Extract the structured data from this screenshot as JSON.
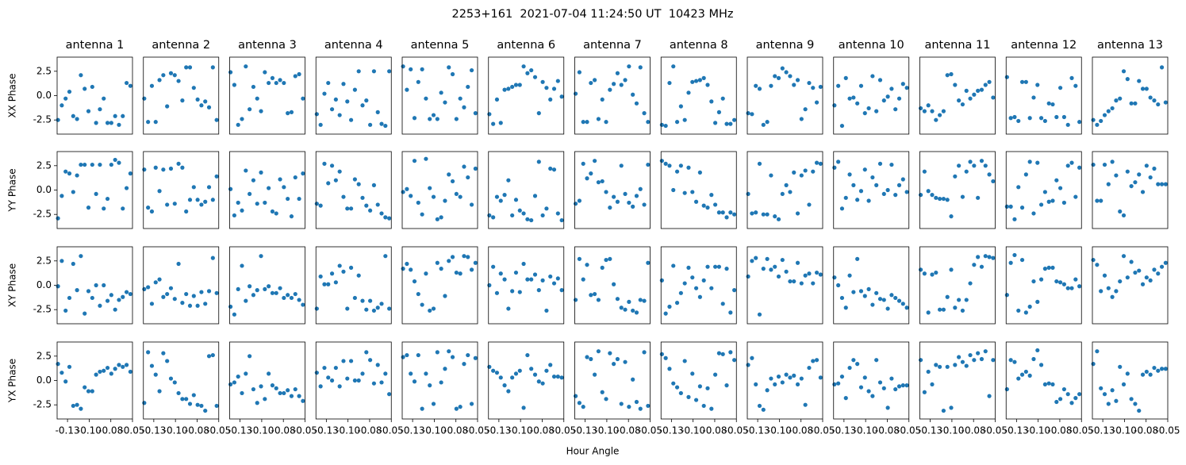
{
  "chart_data": {
    "type": "scatter",
    "title": "2253+161  2021-07-04 11:24:50 UT  10423 MHz",
    "xlabel": "Hour Angle",
    "color": "#1f77b4",
    "column_titles": [
      "antenna 1",
      "antenna 2",
      "antenna 3",
      "antenna 4",
      "antenna 5",
      "antenna 6",
      "antenna 7",
      "antenna 8",
      "antenna 9",
      "antenna 10",
      "antenna 11",
      "antenna 12",
      "antenna 13"
    ],
    "row_labels": [
      "XX Phase",
      "YY Phase",
      "XY Phase",
      "YX Phase"
    ],
    "xlim": [
      -0.137,
      -0.05
    ],
    "xticks": [
      {
        "value": -0.125,
        "label": "-0.13"
      },
      {
        "value": -0.1,
        "label": "-0.10"
      },
      {
        "value": -0.075,
        "label": "-0.08"
      },
      -0.05
    ],
    "ylim": [
      -3.95,
      3.95
    ],
    "yticks": [
      -2.5,
      {
        "value": 0,
        "label": "0.0"
      },
      2.5
    ],
    "x": [
      -0.136,
      -0.1316,
      -0.1272,
      -0.1228,
      -0.1184,
      -0.114,
      -0.1096,
      -0.1052,
      -0.1008,
      -0.0964,
      -0.092,
      -0.0876,
      -0.0832,
      -0.0788,
      -0.0744,
      -0.07,
      -0.0656,
      -0.0612,
      -0.0568,
      -0.0524
    ],
    "panels": [
      [
        [
          -2.5,
          -1.0,
          -0.3,
          0.4,
          -2.1,
          -2.4,
          2.1,
          0.7,
          -1.6,
          0.9,
          -2.8,
          -1.4,
          -0.3,
          -2.8,
          -2.8,
          -2.1,
          -3.0,
          -2.1,
          1.3,
          1.0
        ],
        [
          -0.3,
          -2.7,
          1.0,
          -2.7,
          1.6,
          2.1,
          -1.1,
          2.3,
          2.1,
          1.5,
          -0.5,
          2.9,
          2.9,
          0.8,
          -0.4,
          -1.0,
          -0.6,
          -1.2,
          2.9,
          -2.5
        ],
        [
          2.4,
          1.1,
          -3.0,
          -2.4,
          3.0,
          -1.4,
          0.9,
          -0.3,
          -1.6,
          2.4,
          1.3,
          1.8,
          1.3,
          1.6,
          1.3,
          -1.8,
          -1.7,
          2.0,
          2.2,
          -0.3
        ],
        [
          -1.9,
          -3.0,
          0.2,
          1.3,
          -1.4,
          -0.4,
          -2.0,
          1.2,
          -0.6,
          -2.5,
          0.6,
          2.5,
          -1.0,
          -0.5,
          -3.0,
          2.5,
          -1.7,
          -2.9,
          -3.1,
          2.5
        ],
        [
          3.0,
          0.6,
          2.7,
          -2.3,
          1.4,
          2.7,
          -0.3,
          -2.4,
          -2.0,
          -2.4,
          0.3,
          -0.7,
          2.9,
          2.2,
          -2.4,
          -0.3,
          -1.2,
          0.9,
          2.6,
          -1.8
        ],
        [
          -1.9,
          -2.9,
          -0.4,
          -2.8,
          0.6,
          0.7,
          0.9,
          1.1,
          1.1,
          3.0,
          2.3,
          2.6,
          1.9,
          -1.8,
          1.4,
          0.8,
          -0.4,
          0.7,
          1.5,
          -0.1
        ],
        [
          0.2,
          2.4,
          -2.7,
          -2.7,
          1.3,
          1.6,
          -2.4,
          -0.4,
          -2.7,
          0.6,
          1.2,
          2.3,
          1.1,
          1.6,
          3.0,
          0.1,
          -0.8,
          2.9,
          -1.8,
          -2.7
        ],
        [
          -3.0,
          -3.1,
          1.3,
          3.0,
          -2.7,
          -1.1,
          -2.5,
          0.3,
          1.4,
          1.5,
          1.6,
          1.8,
          1.1,
          -0.6,
          -2.8,
          -1.7,
          -0.3,
          -2.9,
          -2.9,
          -2.5
        ],
        [
          -1.8,
          -1.9,
          1.0,
          0.7,
          -3.0,
          -2.7,
          1.0,
          2.0,
          1.8,
          2.8,
          2.4,
          2.0,
          1.1,
          1.6,
          -2.4,
          -1.4,
          1.3,
          0.8,
          -0.7,
          0.9
        ],
        [
          -1.0,
          1.0,
          -3.1,
          1.8,
          -0.3,
          -0.2,
          -0.8,
          1.0,
          -1.8,
          -1.3,
          2.0,
          -1.6,
          1.6,
          -0.5,
          -0.1,
          0.7,
          -1.4,
          -0.3,
          1.2,
          0.8
        ],
        [
          -1.3,
          -1.6,
          -1.0,
          -1.6,
          -2.5,
          -2.0,
          -1.6,
          2.1,
          2.2,
          1.1,
          -0.5,
          -0.9,
          0.5,
          -0.3,
          0.1,
          0.5,
          0.6,
          1.1,
          1.4,
          -0.2
        ],
        [
          1.9,
          -2.3,
          -2.2,
          -2.6,
          1.4,
          1.4,
          -2.3,
          -0.2,
          1.1,
          -2.3,
          -2.6,
          -0.8,
          -0.9,
          -2.2,
          0.8,
          -2.2,
          -3.0,
          1.8,
          1.0,
          -2.7
        ],
        [
          -2.5,
          -3.0,
          -2.6,
          -2.0,
          -1.6,
          -1.3,
          -0.5,
          -0.3,
          2.5,
          1.7,
          -0.8,
          -0.8,
          1.5,
          0.7,
          0.7,
          -0.2,
          -0.5,
          -0.9,
          2.9,
          -0.7
        ]
      ],
      [
        [
          -2.9,
          -0.6,
          1.9,
          1.7,
          -0.2,
          1.5,
          2.6,
          2.6,
          -1.8,
          2.6,
          -0.4,
          2.6,
          -1.9,
          -0.9,
          2.6,
          3.1,
          2.8,
          -1.9,
          0.2,
          1.7
        ],
        [
          2.1,
          -1.8,
          -2.2,
          2.3,
          -0.1,
          2.1,
          -1.5,
          2.2,
          -1.4,
          2.7,
          2.3,
          -2.2,
          -1.0,
          0.3,
          -1.0,
          -1.5,
          -1.2,
          0.3,
          -1.0,
          1.4
        ],
        [
          0.1,
          -2.6,
          -1.3,
          -2.1,
          2.0,
          -0.4,
          1.0,
          -1.4,
          1.8,
          -1.3,
          0.2,
          -2.2,
          -2.4,
          1.1,
          0.3,
          -0.9,
          -2.7,
          1.3,
          -0.9,
          1.7
        ],
        [
          -1.4,
          -1.6,
          2.7,
          0.7,
          2.5,
          1.0,
          1.9,
          -0.7,
          -1.9,
          -1.9,
          1.1,
          0.6,
          -0.8,
          -1.6,
          -2.1,
          0.5,
          -1.5,
          -2.4,
          -2.8,
          -2.9
        ],
        [
          -0.2,
          0.1,
          -0.6,
          3.0,
          -1.3,
          -2.5,
          3.2,
          0.2,
          -0.7,
          -3.0,
          -2.8,
          -1.1,
          1.6,
          0.9,
          -0.4,
          -0.7,
          2.4,
          1.3,
          -1.5,
          2.2
        ],
        [
          -2.6,
          -2.8,
          -0.7,
          -1.1,
          -0.5,
          1.0,
          -2.6,
          -1.0,
          -2.1,
          -2.4,
          -3.0,
          -3.1,
          -0.6,
          2.9,
          -2.6,
          -1.9,
          2.2,
          2.1,
          -2.4,
          -3.1
        ],
        [
          -1.4,
          -1.1,
          2.7,
          1.2,
          1.7,
          3.0,
          0.8,
          0.9,
          -0.2,
          -1.8,
          -0.7,
          -1.2,
          2.5,
          -0.4,
          -1.3,
          -1.7,
          -0.6,
          0.1,
          -1.5,
          2.6
        ],
        [
          3.0,
          2.7,
          2.5,
          0.0,
          1.9,
          2.5,
          -0.3,
          2.3,
          -0.2,
          -1.2,
          1.8,
          -1.6,
          -1.8,
          -0.5,
          -1.5,
          -2.3,
          -2.3,
          -2.8,
          -2.3,
          -2.5
        ],
        [
          -0.4,
          -2.4,
          -2.3,
          2.7,
          -2.5,
          -2.5,
          1.5,
          -2.7,
          -3.0,
          -0.4,
          0.5,
          -0.2,
          1.8,
          -2.4,
          1.5,
          2.0,
          -1.5,
          1.9,
          2.8,
          2.7
        ],
        [
          2.3,
          2.9,
          -1.9,
          -0.8,
          1.6,
          0.5,
          -1.0,
          -0.1,
          2.1,
          -1.1,
          1.3,
          0.5,
          2.7,
          -0.4,
          0.0,
          2.6,
          -0.5,
          0.5,
          1.1,
          -0.2
        ],
        [
          -0.5,
          1.9,
          -0.1,
          -0.5,
          -0.8,
          -0.9,
          -0.9,
          -1.0,
          -2.7,
          1.4,
          2.5,
          -0.7,
          1.9,
          2.9,
          2.5,
          -0.8,
          3.0,
          2.5,
          1.6,
          0.9
        ],
        [
          -1.7,
          -1.7,
          -3.0,
          0.3,
          -1.8,
          1.6,
          2.9,
          -2.4,
          2.8,
          -1.5,
          -0.2,
          -1.2,
          -1.1,
          1.0,
          0.2,
          -1.3,
          2.5,
          2.8,
          -0.7,
          2.3
        ],
        [
          2.6,
          -1.1,
          -1.1,
          2.6,
          0.6,
          2.9,
          1.5,
          -2.2,
          -2.6,
          1.9,
          0.4,
          0.8,
          1.6,
          -0.2,
          2.5,
          1.3,
          2.2,
          0.6,
          0.6,
          0.6
        ]
      ],
      [
        [
          -0.1,
          2.5,
          -2.6,
          -1.3,
          2.2,
          -0.5,
          3.0,
          -2.9,
          -0.6,
          -1.3,
          0.0,
          -2.1,
          0.0,
          -1.6,
          -1.0,
          -2.5,
          -1.5,
          -1.2,
          -0.7,
          -0.9
        ],
        [
          -0.4,
          -0.2,
          -1.9,
          0.3,
          0.6,
          -1.2,
          -0.9,
          -0.3,
          -1.4,
          2.2,
          -1.8,
          -0.9,
          -2.1,
          -1.1,
          -2.1,
          -0.7,
          -1.9,
          -0.6,
          2.8,
          -0.8
        ],
        [
          -2.2,
          -3.0,
          -0.4,
          2.0,
          -1.6,
          -0.1,
          -1.0,
          -0.5,
          3.0,
          -0.4,
          -0.1,
          -0.8,
          -0.8,
          -0.3,
          -1.3,
          -1.0,
          -1.3,
          -0.9,
          -1.5,
          -2.0
        ],
        [
          -2.4,
          0.9,
          0.1,
          0.1,
          1.2,
          0.3,
          2.0,
          1.4,
          -2.4,
          1.8,
          -1.3,
          1.0,
          -1.6,
          -2.5,
          -1.6,
          -2.6,
          -2.3,
          -1.9,
          3.0,
          -2.4
        ],
        [
          1.7,
          2.2,
          1.6,
          0.4,
          -0.9,
          -2.0,
          1.2,
          -2.6,
          -2.4,
          2.3,
          1.7,
          -1.1,
          2.5,
          2.9,
          1.3,
          1.2,
          3.0,
          2.9,
          1.6,
          2.3
        ],
        [
          0.0,
          1.9,
          -0.8,
          1.2,
          0.6,
          -2.4,
          -0.6,
          1.3,
          -0.7,
          2.2,
          0.6,
          0.6,
          1.1,
          -0.5,
          0.5,
          -2.6,
          0.9,
          0.2,
          0.7,
          -0.5
        ],
        [
          -1.5,
          2.7,
          0.6,
          2.1,
          -1.0,
          -0.9,
          -1.5,
          1.8,
          2.6,
          2.7,
          0.1,
          -1.4,
          -2.3,
          -2.5,
          -1.7,
          -2.6,
          -2.8,
          -1.5,
          -1.6,
          2.3
        ],
        [
          0.5,
          -2.9,
          -2.2,
          2.0,
          -1.8,
          -0.8,
          0.2,
          1.8,
          0.8,
          -0.3,
          -1.2,
          0.5,
          1.9,
          -0.3,
          1.9,
          1.9,
          -1.9,
          1.7,
          -2.8,
          -0.5
        ],
        [
          0.9,
          2.5,
          2.8,
          -3.0,
          1.7,
          2.7,
          1.6,
          1.9,
          0.9,
          2.6,
          1.4,
          0.4,
          0.4,
          2.3,
          0.2,
          1.0,
          1.2,
          0.2,
          1.3,
          1.1
        ],
        [
          0.8,
          0.0,
          -1.3,
          -2.3,
          1.0,
          -0.7,
          2.7,
          -0.6,
          -1.1,
          -0.4,
          -2.0,
          -0.8,
          -1.4,
          -1.5,
          -2.4,
          -1.0,
          -1.3,
          -1.6,
          -1.9,
          -2.3
        ],
        [
          1.6,
          1.2,
          -2.8,
          1.1,
          1.3,
          -2.5,
          -2.5,
          -1.2,
          1.6,
          -2.3,
          -1.5,
          -2.6,
          -1.5,
          0.2,
          2.1,
          2.9,
          1.9,
          3.0,
          2.9,
          2.8
        ],
        [
          -1.0,
          2.3,
          3.1,
          -2.6,
          2.6,
          -2.8,
          -2.2,
          0.4,
          -1.7,
          0.6,
          1.7,
          1.8,
          1.8,
          0.4,
          0.3,
          0.1,
          -0.3,
          -0.3,
          0.6,
          -0.1
        ],
        [
          2.6,
          2.1,
          -0.6,
          1.0,
          -0.3,
          -1.2,
          -0.6,
          0.4,
          3.0,
          0.8,
          2.4,
          1.3,
          1.5,
          0.1,
          0.8,
          0.5,
          1.6,
          1.2,
          1.9,
          2.3
        ]
      ],
      [
        [
          1.7,
          0.8,
          -0.1,
          1.4,
          -2.6,
          -2.5,
          -2.9,
          -0.7,
          -1.1,
          -1.1,
          0.6,
          0.9,
          1.0,
          1.3,
          0.7,
          1.2,
          1.6,
          1.4,
          1.6,
          0.9
        ],
        [
          -2.3,
          2.9,
          1.5,
          0.6,
          -1.1,
          2.8,
          2.0,
          0.2,
          -0.2,
          -1.3,
          -1.9,
          -1.9,
          -2.4,
          -1.5,
          -2.5,
          -2.6,
          -3.1,
          2.5,
          2.6,
          -2.6
        ],
        [
          -0.4,
          -0.2,
          0.4,
          -1.3,
          0.7,
          2.5,
          -0.9,
          -2.3,
          -0.6,
          -1.9,
          0.7,
          -0.5,
          -0.8,
          -1.3,
          -1.3,
          -1.0,
          -1.6,
          -0.9,
          -1.6,
          -2.1
        ],
        [
          0.8,
          -0.6,
          1.3,
          0.3,
          0.0,
          1.3,
          -0.6,
          2.0,
          0.2,
          2.0,
          0.0,
          0.0,
          0.7,
          2.9,
          2.1,
          -0.3,
          1.6,
          -0.2,
          0.7,
          -1.4
        ],
        [
          2.4,
          2.6,
          0.7,
          -0.1,
          2.6,
          -2.9,
          0.7,
          -0.5,
          -2.4,
          2.9,
          -0.2,
          1.2,
          3.0,
          2.4,
          -2.9,
          -2.7,
          1.7,
          2.6,
          -2.4,
          2.3
        ],
        [
          1.4,
          1.0,
          0.8,
          0.3,
          -0.5,
          -1.1,
          0.3,
          0.7,
          1.0,
          -2.8,
          2.6,
          1.2,
          0.6,
          -0.1,
          -0.3,
          1.0,
          1.6,
          0.4,
          0.4,
          0.3
        ],
        [
          -1.6,
          -2.3,
          -2.7,
          2.4,
          2.2,
          0.6,
          3.0,
          -1.2,
          -1.9,
          2.8,
          1.7,
          2.2,
          -2.4,
          1.9,
          -2.7,
          0.1,
          -2.2,
          -2.9,
          2.9,
          -2.6
        ],
        [
          2.7,
          2.3,
          1.2,
          -0.3,
          -0.7,
          -1.3,
          2.0,
          -1.7,
          0.7,
          -2.0,
          -0.6,
          -2.6,
          -0.8,
          -2.9,
          0.6,
          2.8,
          2.7,
          -0.5,
          2.9,
          2.1
        ],
        [
          1.6,
          2.3,
          -0.4,
          -2.6,
          -3.0,
          -1.0,
          0.2,
          -0.4,
          0.4,
          -0.2,
          0.6,
          0.3,
          0.5,
          -0.4,
          0.2,
          -2.5,
          1.3,
          2.0,
          2.1,
          0.3
        ],
        [
          -0.4,
          -0.3,
          0.4,
          -1.8,
          1.3,
          2.1,
          1.7,
          -0.7,
          0.3,
          -1.1,
          -1.6,
          2.1,
          -0.2,
          -0.8,
          -2.8,
          0.2,
          -0.9,
          -0.6,
          -0.5,
          -0.5
        ],
        [
          2.1,
          -1.2,
          0.9,
          -0.4,
          1.6,
          1.4,
          -3.1,
          1.4,
          -2.8,
          1.6,
          2.4,
          1.9,
          1.5,
          2.6,
          2.1,
          2.8,
          2.2,
          3.0,
          -1.6,
          2.1
        ],
        [
          -0.9,
          2.1,
          1.9,
          0.2,
          0.6,
          0.9,
          0.5,
          2.2,
          3.1,
          1.6,
          -0.4,
          -0.3,
          -0.4,
          -2.2,
          -1.9,
          -0.9,
          -1.4,
          -2.3,
          -1.8,
          -1.4
        ],
        [
          1.7,
          3.0,
          -0.8,
          -1.4,
          -2.4,
          -1.0,
          -2.1,
          1.4,
          -0.4,
          0.7,
          -1.9,
          -2.4,
          -3.1,
          0.6,
          0.9,
          0.6,
          1.3,
          1.0,
          1.2,
          1.2
        ]
      ]
    ]
  }
}
